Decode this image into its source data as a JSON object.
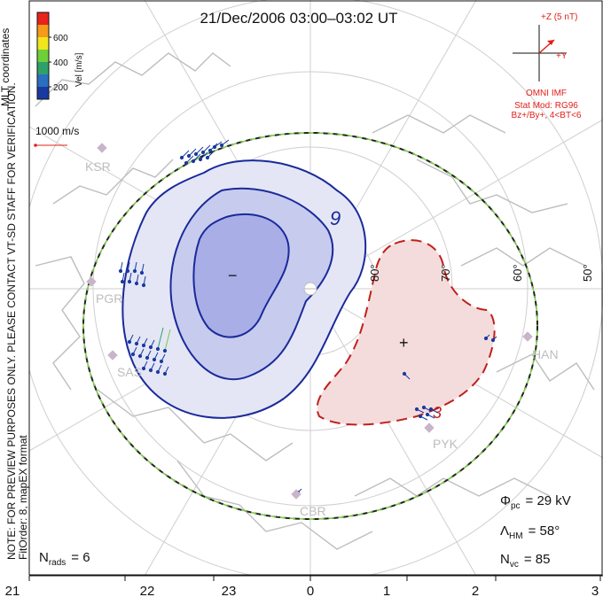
{
  "title": "21/Dec/2006 03:00–03:02 UT",
  "colorbar": {
    "ticks": [
      "600",
      "400",
      "200"
    ],
    "label": "Vel [m/s]",
    "colors": [
      "#e8231c",
      "#f59a1a",
      "#f0e51e",
      "#6fcf3a",
      "#2fa06a",
      "#2a6fc0",
      "#1a3aa0"
    ]
  },
  "coord_system": "MLT coordinates",
  "vector_scale": "1000 m/s",
  "disclaimer": "NOTE: FOR PREVIEW PURPOSES ONLY. PLEASE CONTACT VT-SD STAFF FOR VERIFICATION.",
  "fit_info": "FitOrder: 8, mapEX format",
  "imf": {
    "z_label": "+Z (5 nT)",
    "y_label": "+Y",
    "source": "OMNI IMF",
    "model_line1": "Stat Mod: RG96",
    "model_line2": "Bz+/By+, 4<BT<6"
  },
  "latitude_labels": [
    "80°",
    "70°",
    "60°",
    "50°"
  ],
  "stations": [
    "KSR",
    "PGR",
    "SAS",
    "CBR",
    "PYK",
    "HAN"
  ],
  "contour_labels": {
    "neg_value": "9",
    "pos_value": "3",
    "minus": "−",
    "plus": "+"
  },
  "stats": {
    "phi_pc": "= 29 kV",
    "lambda_hm": "= 58°",
    "n_vc": "= 85",
    "n_rads": "= 6"
  },
  "mlt_ticks": [
    "21",
    "22",
    "23",
    "0",
    "1",
    "2",
    "3"
  ],
  "colors": {
    "negative_cell": "#1a2a9a",
    "positive_cell": "#c0201a",
    "hm_boundary": "#7ac943",
    "coast": "#c8c8c8",
    "grid": "#c8c8c8",
    "imf_vector": "#e0201a"
  }
}
